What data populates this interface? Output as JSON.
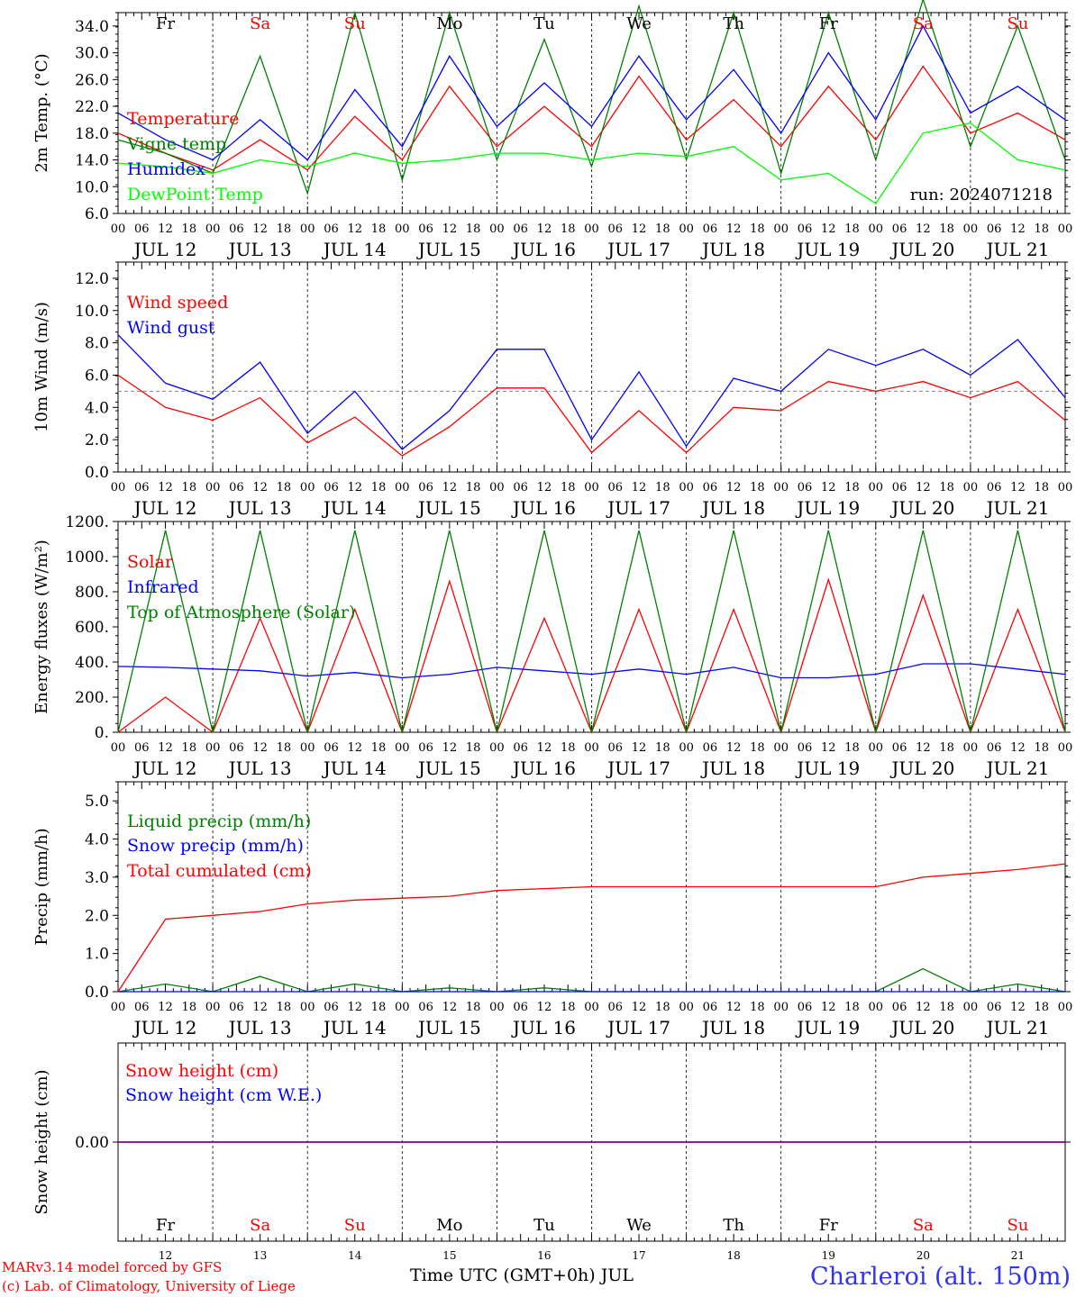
{
  "chart_data": [
    {
      "type": "line",
      "ylabel": "2m Temp. (°C)",
      "ylim": [
        6.0,
        36.0
      ],
      "ytick_labels": [
        "6.0",
        "10.0",
        "14.0",
        "18.0",
        "22.0",
        "26.0",
        "30.0",
        "34.0"
      ],
      "annotation": "run: 2024071218",
      "weekdays": [
        "Fr",
        "Sa",
        "Su",
        "Mo",
        "Tu",
        "We",
        "Th",
        "Fr",
        "Sa",
        "Su"
      ],
      "weekday_colors": [
        "#000000",
        "#ff0000",
        "#ff0000",
        "#000000",
        "#000000",
        "#000000",
        "#000000",
        "#000000",
        "#ff0000",
        "#ff0000"
      ],
      "x": [
        "2024-07-12 00",
        "2024-07-12 12",
        "2024-07-13 00",
        "2024-07-13 12",
        "2024-07-14 00",
        "2024-07-14 12",
        "2024-07-15 00",
        "2024-07-15 12",
        "2024-07-16 00",
        "2024-07-16 12",
        "2024-07-17 00",
        "2024-07-17 12",
        "2024-07-18 00",
        "2024-07-18 12",
        "2024-07-19 00",
        "2024-07-19 12",
        "2024-07-20 00",
        "2024-07-20 12",
        "2024-07-21 00",
        "2024-07-21 12",
        "2024-07-22 00"
      ],
      "series": [
        {
          "name": "Temperature",
          "color": "#ff0000",
          "values": [
            18,
            15,
            12.5,
            17,
            12.5,
            20.5,
            14,
            25,
            16,
            22,
            16,
            26.5,
            17,
            23,
            16,
            25,
            17,
            28,
            18,
            21,
            17
          ]
        },
        {
          "name": "Vigne temp",
          "color": "#008000",
          "values": [
            17,
            15,
            12,
            29.5,
            9,
            36,
            11,
            36,
            14,
            32,
            13,
            37,
            14,
            36,
            12,
            36,
            14,
            38,
            16,
            34,
            14
          ]
        },
        {
          "name": "Humidex",
          "color": "#0000ff",
          "values": [
            21,
            17,
            14,
            20,
            14,
            24.5,
            16,
            29.5,
            19,
            25.5,
            19,
            29.5,
            20,
            27.5,
            18,
            30,
            20,
            34,
            21,
            25,
            20
          ]
        },
        {
          "name": "DewPoint Temp",
          "color": "#00ff00",
          "values": [
            13.5,
            13,
            12,
            14,
            13,
            15,
            13.5,
            14,
            15,
            15,
            14,
            15,
            14.5,
            16,
            11,
            12,
            7.5,
            18,
            19.5,
            14,
            12.5
          ]
        }
      ]
    },
    {
      "type": "line",
      "ylabel": "10m Wind (m/s)",
      "ylim": [
        0.0,
        13.0
      ],
      "ytick_labels": [
        "0.0",
        "2.0",
        "4.0",
        "6.0",
        "8.0",
        "10.0",
        "12.0"
      ],
      "reference_line": 5.0,
      "x": [
        "2024-07-12 00",
        "2024-07-12 12",
        "2024-07-13 00",
        "2024-07-13 12",
        "2024-07-14 00",
        "2024-07-14 12",
        "2024-07-15 00",
        "2024-07-15 12",
        "2024-07-16 00",
        "2024-07-16 12",
        "2024-07-17 00",
        "2024-07-17 12",
        "2024-07-18 00",
        "2024-07-18 12",
        "2024-07-19 00",
        "2024-07-19 12",
        "2024-07-20 00",
        "2024-07-20 12",
        "2024-07-21 00",
        "2024-07-21 12",
        "2024-07-22 00"
      ],
      "series": [
        {
          "name": "Wind speed",
          "color": "#ff0000",
          "values": [
            6,
            4,
            3.2,
            4.6,
            1.8,
            3.4,
            1.0,
            2.8,
            5.2,
            5.2,
            1.2,
            3.8,
            1.2,
            4.0,
            3.8,
            5.6,
            5.0,
            5.6,
            4.6,
            5.6,
            3.2
          ]
        },
        {
          "name": "Wind gust",
          "color": "#0000ff",
          "values": [
            8.5,
            5.5,
            4.5,
            6.8,
            2.4,
            5.0,
            1.4,
            3.8,
            7.6,
            7.6,
            2.0,
            6.2,
            1.6,
            5.8,
            5.0,
            7.6,
            6.6,
            7.6,
            6.0,
            8.2,
            4.6
          ]
        }
      ]
    },
    {
      "type": "line",
      "ylabel": "Energy fluxes (W/m²)",
      "ylim": [
        0,
        1200
      ],
      "ytick_labels": [
        "0.",
        "200.",
        "400.",
        "600.",
        "800.",
        "1000.",
        "1200."
      ],
      "x": [
        "2024-07-12 00",
        "2024-07-12 12",
        "2024-07-13 00",
        "2024-07-13 12",
        "2024-07-14 00",
        "2024-07-14 12",
        "2024-07-15 00",
        "2024-07-15 12",
        "2024-07-16 00",
        "2024-07-16 12",
        "2024-07-17 00",
        "2024-07-17 12",
        "2024-07-18 00",
        "2024-07-18 12",
        "2024-07-19 00",
        "2024-07-19 12",
        "2024-07-20 00",
        "2024-07-20 12",
        "2024-07-21 00",
        "2024-07-21 12",
        "2024-07-22 00"
      ],
      "series": [
        {
          "name": "Solar",
          "color": "#ff0000",
          "values": [
            0,
            200,
            0,
            650,
            0,
            700,
            0,
            860,
            0,
            650,
            0,
            700,
            0,
            700,
            0,
            870,
            0,
            780,
            0,
            700,
            0
          ]
        },
        {
          "name": "Infrared",
          "color": "#0000ff",
          "values": [
            375,
            370,
            360,
            350,
            320,
            340,
            310,
            330,
            370,
            350,
            330,
            360,
            330,
            370,
            310,
            310,
            330,
            390,
            390,
            360,
            330
          ]
        },
        {
          "name": "Top of Atmosphere (Solar)",
          "color": "#008000",
          "values": [
            0,
            1150,
            0,
            1150,
            0,
            1150,
            0,
            1150,
            0,
            1150,
            0,
            1150,
            0,
            1150,
            0,
            1150,
            0,
            1150,
            0,
            1150,
            0
          ]
        }
      ]
    },
    {
      "type": "line",
      "ylabel": "Precip (mm/h)",
      "ylim": [
        0.0,
        5.5
      ],
      "ytick_labels": [
        "0.0",
        "1.0",
        "2.0",
        "3.0",
        "4.0",
        "5.0"
      ],
      "x": [
        "2024-07-12 00",
        "2024-07-12 12",
        "2024-07-13 00",
        "2024-07-13 12",
        "2024-07-14 00",
        "2024-07-14 12",
        "2024-07-15 00",
        "2024-07-15 12",
        "2024-07-16 00",
        "2024-07-16 12",
        "2024-07-17 00",
        "2024-07-17 12",
        "2024-07-18 00",
        "2024-07-18 12",
        "2024-07-19 00",
        "2024-07-19 12",
        "2024-07-20 00",
        "2024-07-20 12",
        "2024-07-21 00",
        "2024-07-21 12",
        "2024-07-22 00"
      ],
      "series": [
        {
          "name": "Liquid precip (mm/h)",
          "color": "#008000",
          "values": [
            0,
            0.2,
            0,
            0.4,
            0,
            0.2,
            0,
            0.1,
            0,
            0.1,
            0,
            0,
            0,
            0,
            0,
            0,
            0,
            0.6,
            0,
            0.2,
            0
          ]
        },
        {
          "name": "Snow precip (mm/h)",
          "color": "#0000ff",
          "values": [
            0,
            0,
            0,
            0,
            0,
            0,
            0,
            0,
            0,
            0,
            0,
            0,
            0,
            0,
            0,
            0,
            0,
            0,
            0,
            0,
            0
          ]
        },
        {
          "name": "Total cumulated (cm)",
          "color": "#ff0000",
          "values": [
            0,
            1.9,
            2.0,
            2.1,
            2.3,
            2.4,
            2.45,
            2.5,
            2.65,
            2.7,
            2.75,
            2.75,
            2.75,
            2.75,
            2.75,
            2.75,
            2.75,
            3.0,
            3.1,
            3.2,
            3.35
          ]
        }
      ]
    },
    {
      "type": "line",
      "ylabel": "Snow height (cm)",
      "ytick_labels": [
        "0.00"
      ],
      "weekdays": [
        "Fr",
        "Sa",
        "Su",
        "Mo",
        "Tu",
        "We",
        "Th",
        "Fr",
        "Sa",
        "Su"
      ],
      "weekday_colors": [
        "#000000",
        "#ff0000",
        "#ff0000",
        "#000000",
        "#000000",
        "#000000",
        "#000000",
        "#000000",
        "#ff0000",
        "#ff0000"
      ],
      "day_numbers": [
        "12",
        "13",
        "14",
        "15",
        "16",
        "17",
        "18",
        "19",
        "20",
        "21"
      ],
      "x": [
        "2024-07-12 00",
        "2024-07-22 00"
      ],
      "series": [
        {
          "name": "Snow height (cm)",
          "color": "#ff0000",
          "values": [
            0,
            0
          ]
        },
        {
          "name": "Snow height (cm W.E.)",
          "color": "#0000ff",
          "values": [
            0,
            0
          ]
        }
      ]
    }
  ],
  "xaxis": {
    "hour_labels": [
      "00",
      "06",
      "12",
      "18"
    ],
    "final_hour_label": "00",
    "day_labels": [
      "JUL 12",
      "JUL 13",
      "JUL 14",
      "JUL 15",
      "JUL 16",
      "JUL 17",
      "JUL 18",
      "JUL 19",
      "JUL 20",
      "JUL 21"
    ],
    "title": "Time UTC (GMT+0h) JUL"
  },
  "footer": {
    "model_line": "MARv3.14 model forced by GFS",
    "lab_line": "(c) Lab. of Climatology, University of Liege",
    "station": "Charleroi (alt. 150m)"
  }
}
